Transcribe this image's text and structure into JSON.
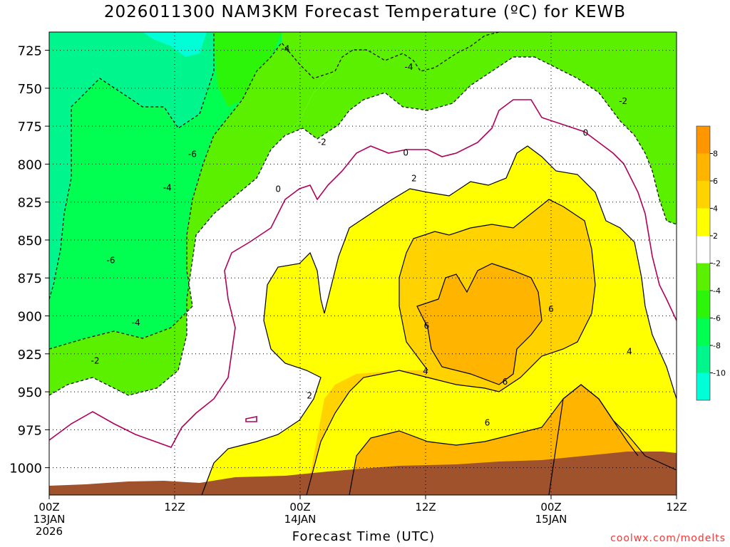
{
  "chart_data": {
    "type": "heatmap",
    "title": "2026011300 NAM3KM Forecast Temperature (ºC) for KEWB",
    "xlabel": "Forecast Time (UTC)",
    "ylabel": "",
    "credit": "coolwx.com/modelts",
    "y_axis": {
      "ticks": [
        725,
        750,
        775,
        800,
        825,
        850,
        875,
        900,
        925,
        950,
        975,
        1000
      ],
      "ylim": [
        1018,
        713
      ],
      "grid": true
    },
    "x_axis": {
      "xlim": [
        0,
        60
      ],
      "ticks": [
        {
          "hour": 0,
          "lines": [
            "00Z",
            "13JAN",
            "2026"
          ]
        },
        {
          "hour": 12,
          "lines": [
            "12Z"
          ]
        },
        {
          "hour": 24,
          "lines": [
            "00Z",
            "14JAN"
          ]
        },
        {
          "hour": 36,
          "lines": [
            "12Z"
          ]
        },
        {
          "hour": 48,
          "lines": [
            "00Z",
            "15JAN"
          ]
        },
        {
          "hour": 60,
          "lines": [
            "12Z"
          ]
        }
      ],
      "grid": true
    },
    "colorbar": {
      "levels": [
        -12,
        -10,
        -8,
        -6,
        -4,
        -2,
        2,
        4,
        6,
        8,
        10
      ],
      "labels": [
        "-10",
        "-8",
        "-6",
        "-4",
        "-2",
        "2",
        "4",
        "6",
        "8"
      ],
      "colors": [
        "#00ffd7",
        "#00f58c",
        "#00ff50",
        "#2cf50a",
        "#5af000",
        "#ffffff",
        "#ffff00",
        "#ffd200",
        "#ffb400",
        "#ff9600"
      ]
    },
    "ground_color": "#a0522d",
    "zero_line_color": "#b0005a",
    "contour_labels": [
      {
        "hour": 22.6,
        "p": 723.5,
        "text": "-4"
      },
      {
        "hour": 34.4,
        "p": 735.5,
        "text": "-4"
      },
      {
        "hour": 13.7,
        "p": 793,
        "text": "-6"
      },
      {
        "hour": 11.3,
        "p": 815,
        "text": "-4"
      },
      {
        "hour": 5.9,
        "p": 863,
        "text": "-6"
      },
      {
        "hour": 8.3,
        "p": 904,
        "text": "-4"
      },
      {
        "hour": 4.4,
        "p": 929,
        "text": "-2"
      },
      {
        "hour": 26.1,
        "p": 785,
        "text": "-2"
      },
      {
        "hour": 21.9,
        "p": 816,
        "text": "0"
      },
      {
        "hour": 34.1,
        "p": 792,
        "text": "0"
      },
      {
        "hour": 51.3,
        "p": 779,
        "text": "0"
      },
      {
        "hour": 54.9,
        "p": 758,
        "text": "-2"
      },
      {
        "hour": 34.9,
        "p": 809,
        "text": "2"
      },
      {
        "hour": 24.9,
        "p": 952,
        "text": "2"
      },
      {
        "hour": 36.1,
        "p": 906,
        "text": "6"
      },
      {
        "hour": 36.0,
        "p": 936,
        "text": "4"
      },
      {
        "hour": 43.6,
        "p": 943,
        "text": "6"
      },
      {
        "hour": 41.9,
        "p": 970,
        "text": "6"
      },
      {
        "hour": 48.0,
        "p": 895,
        "text": "6"
      },
      {
        "hour": 55.5,
        "p": 923,
        "text": "4"
      }
    ]
  }
}
